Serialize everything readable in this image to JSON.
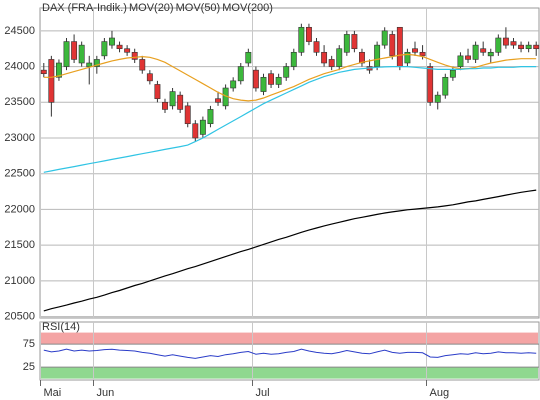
{
  "chart_data": [
    {
      "type": "candlestick",
      "name": "DAX (FRA-Indik.)",
      "color": "#e0603c",
      "up_color": "#3cb83c",
      "down_color": "#e03434",
      "categories": [
        "Mai",
        null,
        null,
        null,
        null,
        null,
        null,
        "Jun",
        null,
        null,
        null,
        null,
        null,
        null,
        null,
        null,
        null,
        null,
        null,
        null,
        null,
        null,
        null,
        null,
        null,
        null,
        null,
        null,
        "Jul",
        null,
        null,
        null,
        null,
        null,
        null,
        null,
        null,
        null,
        null,
        null,
        null,
        null,
        null,
        null,
        null,
        null,
        null,
        null,
        null,
        null,
        null,
        "Aug",
        null,
        null,
        null,
        null,
        null,
        null,
        null,
        null,
        null,
        null,
        null,
        null,
        null,
        null
      ],
      "open": [
        23950,
        24100,
        23850,
        24000,
        24350,
        24050,
        24000,
        24000,
        24150,
        24300,
        24300,
        24250,
        24200,
        24100,
        23900,
        23750,
        23500,
        23450,
        23600,
        23450,
        23200,
        23050,
        23200,
        23550,
        23450,
        23700,
        23800,
        24050,
        23950,
        23650,
        23900,
        23750,
        23850,
        24000,
        24200,
        24550,
        24350,
        24200,
        24100,
        24000,
        24200,
        24450,
        24200,
        24000,
        24000,
        24300,
        24450,
        24550,
        24050,
        24250,
        24200,
        24000,
        23500,
        23600,
        23850,
        24000,
        24150,
        24100,
        24250,
        24150,
        24200,
        24400,
        24350,
        24300,
        24250,
        24300
      ],
      "high": [
        24050,
        24150,
        24100,
        24400,
        24450,
        24350,
        24150,
        24150,
        24400,
        24500,
        24350,
        24300,
        24250,
        24150,
        23950,
        23800,
        23550,
        23700,
        23650,
        23500,
        23250,
        23300,
        23450,
        23650,
        23750,
        23850,
        24050,
        24250,
        24000,
        23900,
        23950,
        23900,
        24050,
        24250,
        24600,
        24600,
        24400,
        24300,
        24150,
        24300,
        24500,
        24500,
        24250,
        24100,
        24350,
        24550,
        24500,
        24550,
        24250,
        24350,
        24300,
        24050,
        23650,
        23900,
        24000,
        24200,
        24250,
        24350,
        24350,
        24250,
        24450,
        24550,
        24400,
        24350,
        24350,
        24350
      ],
      "low": [
        23850,
        23300,
        23800,
        23950,
        24050,
        24000,
        23750,
        23900,
        24100,
        24250,
        24200,
        24150,
        24050,
        23900,
        23750,
        23500,
        23350,
        23400,
        23350,
        23150,
        22950,
        23000,
        23150,
        23450,
        23400,
        23650,
        23750,
        24000,
        23650,
        23600,
        23700,
        23700,
        23800,
        23950,
        24150,
        24300,
        24150,
        24000,
        23950,
        23950,
        24150,
        24200,
        24000,
        23900,
        23950,
        24250,
        24100,
        23950,
        24000,
        24150,
        24100,
        23450,
        23400,
        23550,
        23800,
        23950,
        24050,
        24050,
        24150,
        24050,
        24150,
        24250,
        24250,
        24200,
        24200,
        24150
      ],
      "close": [
        23900,
        23500,
        24050,
        24350,
        24100,
        24300,
        24050,
        24100,
        24350,
        24400,
        24250,
        24200,
        24100,
        23950,
        23800,
        23550,
        23400,
        23650,
        23400,
        23200,
        23000,
        23250,
        23400,
        23500,
        23700,
        23800,
        24000,
        24200,
        23700,
        23850,
        23750,
        23850,
        24000,
        24200,
        24550,
        24350,
        24200,
        24050,
        24000,
        24250,
        24450,
        24250,
        24050,
        23950,
        24300,
        24500,
        24150,
        24000,
        24200,
        24200,
        24150,
        23500,
        23600,
        23850,
        23950,
        24150,
        24100,
        24300,
        24200,
        24200,
        24400,
        24300,
        24300,
        24250,
        24300,
        24250
      ],
      "series": [
        {
          "name": "MOV(20)",
          "color": "#e8a020",
          "values": [
            23850,
            23850,
            23870,
            23900,
            23930,
            23960,
            23990,
            24020,
            24050,
            24080,
            24100,
            24120,
            24130,
            24140,
            24130,
            24100,
            24060,
            24000,
            23940,
            23880,
            23820,
            23760,
            23700,
            23640,
            23590,
            23550,
            23530,
            23520,
            23530,
            23560,
            23600,
            23640,
            23680,
            23720,
            23770,
            23820,
            23860,
            23900,
            23930,
            23960,
            24000,
            24030,
            24060,
            24080,
            24100,
            24120,
            24140,
            24160,
            24170,
            24160,
            24140,
            24100,
            24060,
            24020,
            23990,
            23970,
            23970,
            23990,
            24020,
            24050,
            24070,
            24090,
            24100,
            24110,
            24110,
            24110
          ]
        },
        {
          "name": "MOV(50)",
          "color": "#30c4e4",
          "values": [
            22520,
            22540,
            22560,
            22580,
            22600,
            22620,
            22640,
            22660,
            22680,
            22700,
            22720,
            22740,
            22760,
            22780,
            22800,
            22820,
            22840,
            22860,
            22880,
            22900,
            22950,
            23000,
            23060,
            23120,
            23180,
            23240,
            23300,
            23360,
            23420,
            23480,
            23530,
            23580,
            23630,
            23680,
            23730,
            23780,
            23820,
            23860,
            23890,
            23920,
            23940,
            23960,
            23970,
            23980,
            23990,
            23995,
            24000,
            24000,
            24000,
            23990,
            23980,
            23970,
            23960,
            23960,
            23960,
            23960,
            23970,
            23970,
            23980,
            23980,
            23990,
            23990,
            23990,
            24000,
            24000,
            24000
          ]
        },
        {
          "name": "MOV(200)",
          "color": "#000000",
          "values": [
            20580,
            20610,
            20635,
            20660,
            20690,
            20715,
            20745,
            20770,
            20800,
            20835,
            20865,
            20900,
            20935,
            20965,
            21000,
            21035,
            21070,
            21100,
            21135,
            21170,
            21200,
            21235,
            21270,
            21305,
            21340,
            21375,
            21410,
            21440,
            21475,
            21510,
            21545,
            21580,
            21610,
            21645,
            21680,
            21710,
            21740,
            21770,
            21795,
            21820,
            21845,
            21870,
            21890,
            21910,
            21930,
            21950,
            21965,
            21980,
            21995,
            22005,
            22015,
            22025,
            22035,
            22050,
            22065,
            22085,
            22105,
            22120,
            22140,
            22160,
            22180,
            22200,
            22220,
            22240,
            22255,
            22270
          ]
        }
      ],
      "ylim": [
        20480,
        24820
      ],
      "yticks": [
        20500,
        21000,
        21500,
        22000,
        22500,
        23000,
        23500,
        24000,
        24500
      ],
      "grid": true
    },
    {
      "type": "line",
      "title": "RSI(14)",
      "color": "#2a3cc8",
      "values": [
        62,
        58,
        60,
        64,
        60,
        62,
        60,
        61,
        63,
        64,
        62,
        61,
        60,
        57,
        55,
        52,
        49,
        52,
        49,
        46,
        44,
        47,
        50,
        48,
        52,
        54,
        57,
        59,
        53,
        55,
        53,
        54,
        57,
        59,
        64,
        60,
        57,
        55,
        54,
        57,
        61,
        58,
        55,
        54,
        58,
        62,
        57,
        55,
        57,
        57,
        56,
        47,
        46,
        50,
        52,
        54,
        53,
        56,
        54,
        55,
        58,
        56,
        56,
        55,
        56,
        55
      ],
      "ylim": [
        -3,
        123
      ],
      "yticks": [
        25,
        75
      ],
      "bands": [
        {
          "from": 75,
          "to": 100,
          "color": "#f4a4a4"
        },
        {
          "from": 0,
          "to": 25,
          "color": "#8fd88f"
        }
      ]
    }
  ]
}
